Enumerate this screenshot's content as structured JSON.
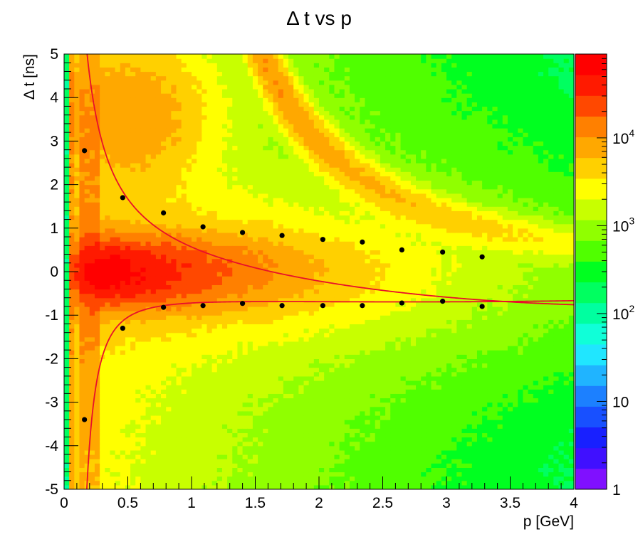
{
  "chart_data": {
    "type": "heatmap",
    "title": "Δ t vs p",
    "xlabel": "p [GeV]",
    "ylabel": "Δ t [ns]",
    "xlim": [
      0,
      4
    ],
    "ylim": [
      -5,
      5
    ],
    "x_ticks": [
      {
        "value": 0,
        "label": "0"
      },
      {
        "value": 0.5,
        "label": "0.5"
      },
      {
        "value": 1,
        "label": "1"
      },
      {
        "value": 1.5,
        "label": "1.5"
      },
      {
        "value": 2,
        "label": "2"
      },
      {
        "value": 2.5,
        "label": "2.5"
      },
      {
        "value": 3,
        "label": "3"
      },
      {
        "value": 3.5,
        "label": "3.5"
      },
      {
        "value": 4,
        "label": "4"
      }
    ],
    "y_ticks": [
      {
        "value": -5,
        "label": "-5"
      },
      {
        "value": -4,
        "label": "-4"
      },
      {
        "value": -3,
        "label": "-3"
      },
      {
        "value": -2,
        "label": "-2"
      },
      {
        "value": -1,
        "label": "-1"
      },
      {
        "value": 0,
        "label": "0"
      },
      {
        "value": 1,
        "label": "1"
      },
      {
        "value": 2,
        "label": "2"
      },
      {
        "value": 3,
        "label": "3"
      },
      {
        "value": 4,
        "label": "4"
      },
      {
        "value": 5,
        "label": "5"
      }
    ],
    "z_scale": "log",
    "zlim": [
      1,
      90000
    ],
    "z_ticks": [
      {
        "value": 1,
        "label": "1"
      },
      {
        "value": 10,
        "label": "10"
      },
      {
        "value": 100,
        "label": "10",
        "exp": "2"
      },
      {
        "value": 1000,
        "label": "10",
        "exp": "3"
      },
      {
        "value": 10000,
        "label": "10",
        "exp": "4"
      }
    ],
    "palette": [
      "#8010ff",
      "#4010ff",
      "#1820ff",
      "#1850ff",
      "#1c80ff",
      "#20b4ff",
      "#20e6ff",
      "#10ffd8",
      "#00ffa0",
      "#00ff60",
      "#00ff20",
      "#50ff00",
      "#90ff00",
      "#c8ff00",
      "#ffff00",
      "#ffd000",
      "#ffa800",
      "#ff8000",
      "#ff4800",
      "#ff1a00",
      "#ff0000"
    ],
    "points_upper": [
      {
        "x": 0.16,
        "y": 2.78
      },
      {
        "x": 0.46,
        "y": 1.7
      },
      {
        "x": 0.78,
        "y": 1.35
      },
      {
        "x": 1.09,
        "y": 1.03
      },
      {
        "x": 1.4,
        "y": 0.9
      },
      {
        "x": 1.71,
        "y": 0.83
      },
      {
        "x": 2.03,
        "y": 0.74
      },
      {
        "x": 2.34,
        "y": 0.68
      },
      {
        "x": 2.65,
        "y": 0.5
      },
      {
        "x": 2.97,
        "y": 0.45
      },
      {
        "x": 3.28,
        "y": 0.34
      }
    ],
    "points_lower": [
      {
        "x": 0.16,
        "y": -3.4
      },
      {
        "x": 0.46,
        "y": -1.3
      },
      {
        "x": 0.78,
        "y": -0.82
      },
      {
        "x": 1.09,
        "y": -0.78
      },
      {
        "x": 1.4,
        "y": -0.73
      },
      {
        "x": 1.71,
        "y": -0.78
      },
      {
        "x": 2.03,
        "y": -0.78
      },
      {
        "x": 2.34,
        "y": -0.78
      },
      {
        "x": 2.65,
        "y": -0.72
      },
      {
        "x": 2.97,
        "y": -0.68
      },
      {
        "x": 3.28,
        "y": -0.8
      }
    ],
    "fit_color": "#e8102a",
    "point_color": "#000000"
  }
}
